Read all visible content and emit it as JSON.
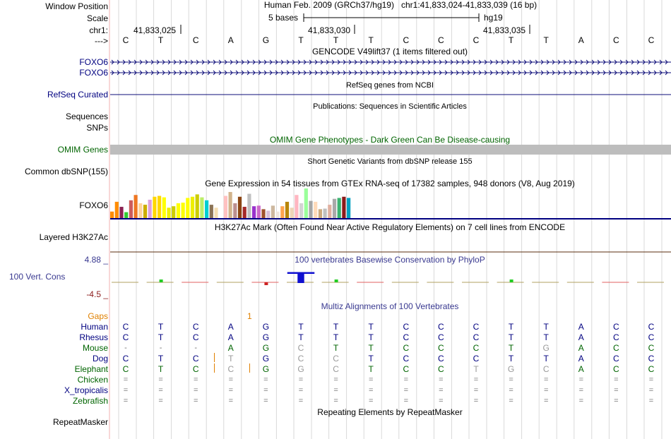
{
  "colors": {
    "navy": "#000080",
    "omim_green": "#006400",
    "phylop_label": "#2f4f8f",
    "gap_orange": "#e08000",
    "h3k27ac_line": "#5a2d0c",
    "gtex_axis": "#000000"
  },
  "header": {
    "position_label": "Window Position",
    "scale_label": "Scale",
    "chrom_label": "chr1:",
    "strand_label": "--->",
    "assembly_text": "Human Feb. 2009 (GRCh37/hg19)   chr1:41,833,024-41,833,039 (16 bp)",
    "scale_text": "5 bases",
    "scale_db": "hg19",
    "ticks": [
      "41,833,025",
      "41,833,030",
      "41,833,035"
    ]
  },
  "sequence": [
    "C",
    "T",
    "C",
    "A",
    "G",
    "T",
    "T",
    "T",
    "C",
    "C",
    "C",
    "T",
    "T",
    "A",
    "C",
    "C"
  ],
  "tracks": {
    "gencode_title": "GENCODE V49lift37 (1 items filtered out)",
    "gencode_items": [
      "FOXO6",
      "FOXO6"
    ],
    "refseq_title": "RefSeq genes from NCBI",
    "refseq_label": "RefSeq Curated",
    "pubs_title": "Publications: Sequences in Scientific Articles",
    "pubs_label": "Sequences",
    "snps_label": "SNPs",
    "omim_title": "OMIM Gene Phenotypes - Dark Green Can Be Disease-causing",
    "omim_label": "OMIM Genes",
    "dbsnp_title": "Short Genetic Variants from dbSNP release 155",
    "dbsnp_label": "Common dbSNP(155)",
    "gtex_title": "Gene Expression in 54 tissues from GTEx RNA-seq of 17382 samples, 948 donors (V8, Aug 2019)",
    "gtex_label": "FOXO6",
    "h3k_title": "H3K27Ac Mark (Often Found Near Active Regulatory Elements) on 7 cell lines from ENCODE",
    "h3k_label": "Layered H3K27Ac",
    "phylop_title": "100 vertebrates Basewise Conservation by PhyloP",
    "phylop_max": "4.88 _",
    "phylop_label": "100 Vert. Cons",
    "phylop_min": "-4.5 _",
    "multiz_title": "Multiz Alignments of 100 Vertebrates",
    "gaps_label": "Gaps",
    "gaps_value": "1",
    "repeat_title": "Repeating Elements by RepeatMasker",
    "repeat_label": "RepeatMasker"
  },
  "gtex_values": [
    0.22,
    0.55,
    0.38,
    0.2,
    0.6,
    0.78,
    0.5,
    0.45,
    0.62,
    0.72,
    0.75,
    0.7,
    0.35,
    0.4,
    0.5,
    0.52,
    0.68,
    0.72,
    0.8,
    0.7,
    0.6,
    0.45,
    0.35,
    0.0,
    0.75,
    0.88,
    0.5,
    0.72,
    0.38,
    0.82,
    0.4,
    0.42,
    0.3,
    0.25,
    0.42,
    0.22,
    0.4,
    0.55,
    0.35,
    0.78,
    0.5,
    1.0,
    0.58,
    0.55,
    0.3,
    0.32,
    0.45,
    0.65,
    0.68,
    0.72,
    0.68,
    0.0,
    0.0,
    0.0
  ],
  "gtex_colors": [
    "#ff8c00",
    "#ff8c00",
    "#8b2252",
    "#32cd32",
    "#cd5c5c",
    "#ee7621",
    "#ffd39b",
    "#cdad00",
    "#dda0dd",
    "#ffd700",
    "#ffd700",
    "#ffff00",
    "#eeee00",
    "#cdcd00",
    "#ffff00",
    "#ffff00",
    "#ffff00",
    "#eeee00",
    "#cdcd00",
    "#bcee68",
    "#00ced1",
    "#8b7355",
    "#f5deb3",
    "#ffffff",
    "#ffc1c1",
    "#d2b48c",
    "#bc8f8f",
    "#8b4513",
    "#a52a2a",
    "#c0c0c0",
    "#9932cc",
    "#cd69c9",
    "#a0522d",
    "#d8bfd8",
    "#cdb79e",
    "#eee5de",
    "#ffa54f",
    "#b8860b",
    "#eed5b7",
    "#ffb6c1",
    "#d3d3d3",
    "#9aff9a",
    "#a6a6a6",
    "#ffdab9",
    "#cdaa7d",
    "#c0c0c0",
    "#e0b0a0",
    "#a9a9a9",
    "#3cb371",
    "#8b1a1a",
    "#00a0c0",
    "#ffffff",
    "#ffffff",
    "#ffffff"
  ],
  "multiz": {
    "species": [
      {
        "name": "Human",
        "color": "#000080",
        "bases": [
          "C",
          "T",
          "C",
          "A",
          "G",
          "T",
          "T",
          "T",
          "C",
          "C",
          "C",
          "T",
          "T",
          "A",
          "C",
          "C"
        ]
      },
      {
        "name": "Rhesus",
        "color": "#000080",
        "bases": [
          "C",
          "T",
          "C",
          "A",
          "G",
          "T",
          "T",
          "T",
          "C",
          "C",
          "C",
          "T",
          "T",
          "A",
          "C",
          "C"
        ]
      },
      {
        "name": "Mouse",
        "color": "#006400",
        "bases": [
          "-",
          "-",
          "-",
          "A",
          "G",
          "C",
          "T",
          "T",
          "C",
          "C",
          "C",
          "T",
          "G",
          "A",
          "C",
          "C"
        ]
      },
      {
        "name": "Dog",
        "color": "#000080",
        "bases": [
          "C",
          "T",
          "C",
          "T",
          "G",
          "C",
          "C",
          "T",
          "C",
          "C",
          "C",
          "T",
          "T",
          "A",
          "C",
          "C"
        ]
      },
      {
        "name": "Elephant",
        "color": "#006400",
        "bases": [
          "C",
          "T",
          "C",
          "C",
          "G",
          "G",
          "C",
          "T",
          "C",
          "C",
          "T",
          "G",
          "C",
          "A",
          "C",
          "C"
        ]
      },
      {
        "name": "Chicken",
        "color": "#006400",
        "bases": [
          "=",
          "=",
          "=",
          "=",
          "=",
          "=",
          "=",
          "=",
          "=",
          "=",
          "=",
          "=",
          "=",
          "=",
          "=",
          "="
        ]
      },
      {
        "name": "X_tropicalis",
        "color": "#000080",
        "bases": [
          "=",
          "=",
          "=",
          "=",
          "=",
          "=",
          "=",
          "=",
          "=",
          "=",
          "=",
          "=",
          "=",
          "=",
          "=",
          "="
        ]
      },
      {
        "name": "Zebrafish",
        "color": "#006400",
        "bases": [
          "=",
          "=",
          "=",
          "=",
          "=",
          "=",
          "=",
          "=",
          "=",
          "=",
          "=",
          "=",
          "=",
          "=",
          "=",
          "="
        ]
      }
    ]
  },
  "phylop_values": [
    0.05,
    0.25,
    -0.05,
    0.0,
    -0.2,
    1.0,
    0.15,
    -0.05,
    0.0,
    0.0,
    0.0,
    0.15,
    0.0,
    0.0,
    -0.1,
    0.0
  ]
}
